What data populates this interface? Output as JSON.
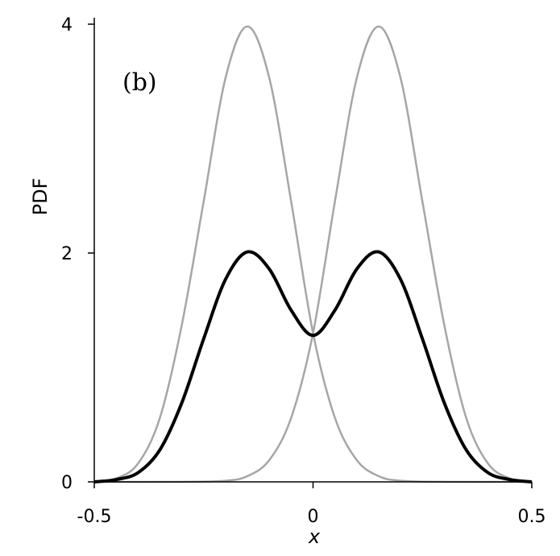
{
  "chart_data": {
    "type": "line",
    "title": "",
    "annotation": "(b)",
    "xlabel": "x",
    "ylabel": "PDF",
    "xlim": [
      -0.5,
      0.5
    ],
    "ylim": [
      0,
      4
    ],
    "x_ticks": [
      -0.5,
      0,
      0.5
    ],
    "x_tick_labels": [
      "-0.5",
      "0",
      "0.5"
    ],
    "y_ticks": [
      0,
      2,
      4
    ],
    "y_tick_labels": [
      "0",
      "2",
      "4"
    ],
    "grid": false,
    "series": [
      {
        "color": "#a6a6a6",
        "points": [
          [
            -0.5,
            0.0
          ],
          [
            -0.45,
            0.03
          ],
          [
            -0.4,
            0.16
          ],
          [
            -0.35,
            0.56
          ],
          [
            -0.3,
            1.37
          ],
          [
            -0.25,
            2.45
          ],
          [
            -0.2,
            3.53
          ],
          [
            -0.15,
            3.98
          ],
          [
            -0.1,
            3.53
          ],
          [
            -0.05,
            2.45
          ],
          [
            0,
            1.3
          ],
          [
            0.05,
            0.56
          ],
          [
            0.1,
            0.19
          ],
          [
            0.15,
            0.05
          ],
          [
            0.2,
            0.01
          ],
          [
            0.3,
            0.0
          ],
          [
            0.5,
            0.0
          ]
        ]
      },
      {
        "color": "#a6a6a6",
        "points": [
          [
            -0.5,
            0.0
          ],
          [
            -0.3,
            0.0
          ],
          [
            -0.2,
            0.01
          ],
          [
            -0.15,
            0.05
          ],
          [
            -0.1,
            0.19
          ],
          [
            -0.05,
            0.56
          ],
          [
            0,
            1.3
          ],
          [
            0.05,
            2.45
          ],
          [
            0.1,
            3.53
          ],
          [
            0.15,
            3.98
          ],
          [
            0.2,
            3.53
          ],
          [
            0.25,
            2.45
          ],
          [
            0.3,
            1.37
          ],
          [
            0.35,
            0.56
          ],
          [
            0.4,
            0.16
          ],
          [
            0.45,
            0.03
          ],
          [
            0.5,
            0.0
          ]
        ]
      },
      {
        "color": "#000000",
        "points": [
          [
            -0.5,
            0.0
          ],
          [
            -0.45,
            0.02
          ],
          [
            -0.4,
            0.08
          ],
          [
            -0.35,
            0.28
          ],
          [
            -0.3,
            0.69
          ],
          [
            -0.25,
            1.25
          ],
          [
            -0.2,
            1.77
          ],
          [
            -0.15,
            2.01
          ],
          [
            -0.1,
            1.86
          ],
          [
            -0.05,
            1.5
          ],
          [
            0,
            1.28
          ],
          [
            0.05,
            1.5
          ],
          [
            0.1,
            1.86
          ],
          [
            0.15,
            2.01
          ],
          [
            0.2,
            1.77
          ],
          [
            0.25,
            1.25
          ],
          [
            0.3,
            0.69
          ],
          [
            0.35,
            0.28
          ],
          [
            0.4,
            0.08
          ],
          [
            0.45,
            0.02
          ],
          [
            0.5,
            0.0
          ]
        ]
      }
    ]
  }
}
